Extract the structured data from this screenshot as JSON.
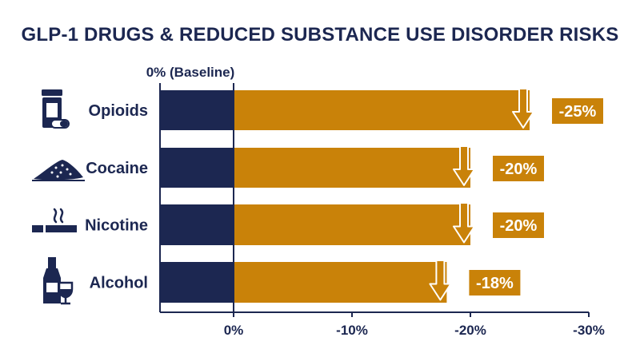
{
  "chart_data": {
    "type": "bar",
    "orientation": "horizontal",
    "title": "GLP-1 DRUGS & REDUCED SUBSTANCE USE DISORDER RISKS",
    "baseline_label": "0% (Baseline)",
    "categories": [
      "Opioids",
      "Cocaine",
      "Nicotine",
      "Alcohol"
    ],
    "icons": [
      "pill-bottle-icon",
      "powder-pile-icon",
      "cigarette-icon",
      "wine-bottle-glass-icon"
    ],
    "values": [
      -25,
      -20,
      -20,
      -18
    ],
    "value_labels": [
      "-25%",
      "-20%",
      "-20%",
      "-18%"
    ],
    "x_ticks": [
      0,
      -10,
      -20,
      -30
    ],
    "x_tick_labels": [
      "0%",
      "-10%",
      "-20%",
      "-30%"
    ],
    "xlim": [
      0,
      -30
    ],
    "colors": {
      "navy": "#1c2751",
      "bar": "#c98209",
      "label_bg": "#c98209",
      "text": "#1c2751"
    }
  }
}
